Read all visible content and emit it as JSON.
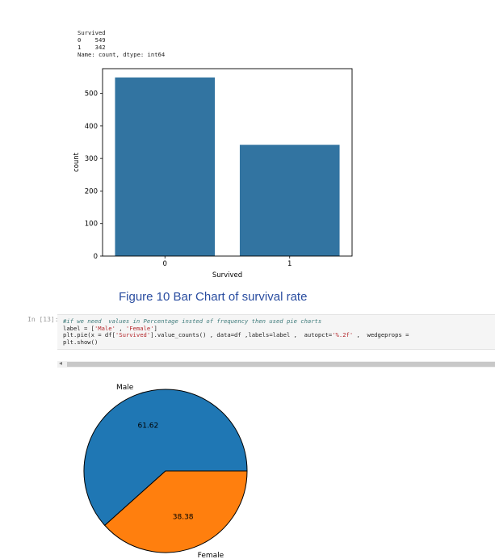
{
  "output": {
    "lines": [
      "Survived",
      "0    549",
      "1    342",
      "Name: count, dtype: int64"
    ]
  },
  "caption": "Figure 10 Bar Chart of survival rate",
  "cell": {
    "prompt": "In [13]:",
    "code": {
      "line1": "#if we need  values in Percentage insted of frequency then used pie charts",
      "line2_a": "label = [",
      "line2_s1": "'Male'",
      "line2_b": " , ",
      "line2_s2": "'Female'",
      "line2_c": "]",
      "line3_a": "plt.pie(x = df[",
      "line3_s1": "'Survived'",
      "line3_b": "].value_counts() , data=df ,labels=label ,  autopct=",
      "line3_s2": "'%.2f'",
      "line3_c": " ,  wedgeprops =",
      "line4": "plt.show()"
    }
  },
  "chart_data": [
    {
      "type": "bar",
      "categories": [
        "0",
        "1"
      ],
      "values": [
        549,
        342
      ],
      "xlabel": "Survived",
      "ylabel": "count",
      "ylim": [
        0,
        576
      ],
      "yticks": [
        0,
        100,
        200,
        300,
        400,
        500
      ],
      "color": "#3274a1",
      "grid": false
    },
    {
      "type": "pie",
      "labels": [
        "Male",
        "Female"
      ],
      "values": [
        61.62,
        38.38
      ],
      "value_labels": [
        "61.62",
        "38.38"
      ],
      "colors": [
        "#1f77b4",
        "#ff7f0e"
      ]
    }
  ]
}
